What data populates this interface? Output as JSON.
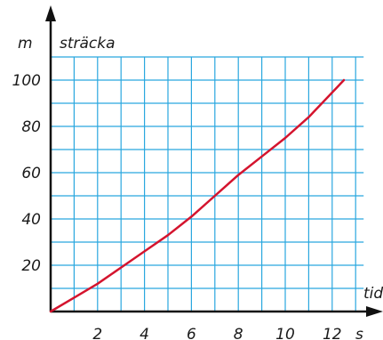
{
  "chart_data": {
    "type": "line",
    "ylabel": "sträcka",
    "yunit": "m",
    "xlabel": "tid",
    "xunit": "s",
    "xlim": [
      0,
      13
    ],
    "ylim": [
      0,
      110
    ],
    "xticks": [
      2,
      4,
      6,
      8,
      10,
      12
    ],
    "yticks": [
      20,
      40,
      60,
      80,
      100
    ],
    "grid": true,
    "colors": {
      "grid": "#29a7df",
      "line": "#d4142e",
      "axis": "#111111"
    },
    "series": [
      {
        "x": [
          0,
          1,
          2,
          3,
          4,
          5,
          6,
          7,
          8,
          9,
          10,
          11,
          12.5
        ],
        "y": [
          0,
          6,
          12,
          19,
          26,
          33,
          41,
          50,
          59,
          67,
          75,
          84,
          100
        ]
      }
    ]
  }
}
